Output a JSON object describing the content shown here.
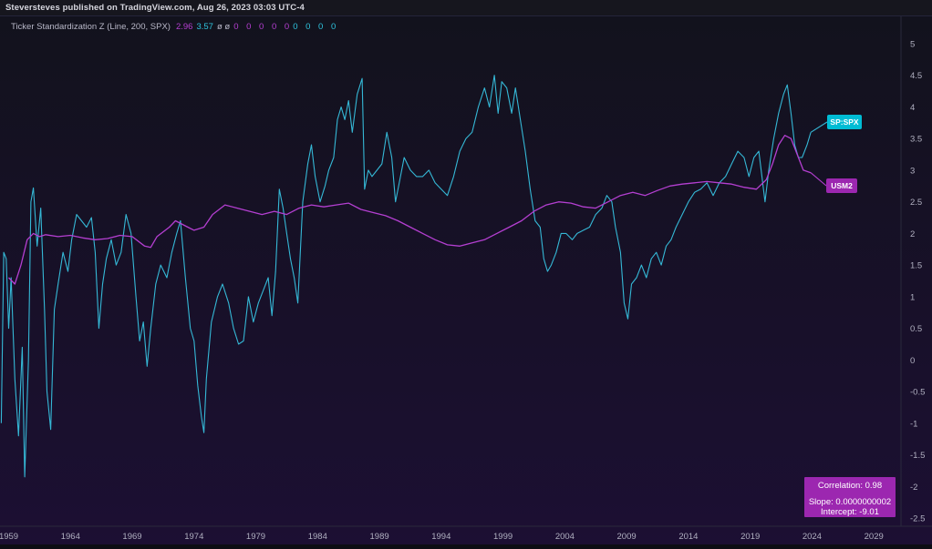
{
  "header": {
    "published_text": "Steversteves published on TradingView.com, Aug 26, 2023 03:03 UTC-4"
  },
  "legend": {
    "indicator_label": "Ticker Standardization Z (Line, 200, SPX)",
    "value_1": "2.96",
    "value_2": "3.57",
    "extra_symbols": "ø ø",
    "zeros_purple": "0 0 0 0 0",
    "zeros_cyan": "0 0 0 0"
  },
  "series_tags": {
    "spx": "SP:SPX",
    "usm2": "USM2"
  },
  "stats_box": {
    "correlation": "Correlation: 0.98",
    "slope": "Slope: 0.0000000002",
    "intercept": "Intercept: -9.01"
  },
  "colors": {
    "background_top": "#12121c",
    "background_bottom": "#1c0f33",
    "spx_line": "#35b8d6",
    "usm2_line": "#b43fd1",
    "tag_spx": "#00bcd4",
    "tag_usm2": "#9c27b0",
    "axis_text": "#b0b0c0"
  },
  "chart_data": {
    "type": "line",
    "title": "",
    "xlabel": "",
    "ylabel": "",
    "xlim": [
      1958.3,
      2031.2
    ],
    "ylim": [
      -2.5,
      5
    ],
    "x_tick_labels": [
      "1959",
      "1964",
      "1969",
      "1974",
      "1979",
      "1984",
      "1989",
      "1994",
      "1999",
      "2004",
      "2009",
      "2014",
      "2019",
      "2024",
      "2029"
    ],
    "y_tick_labels": [
      "5",
      "4.5",
      "4",
      "3.5",
      "3",
      "2.5",
      "2",
      "1.5",
      "1",
      "0.5",
      "0",
      "-0.5",
      "-1",
      "-1.5",
      "-2",
      "-2.5"
    ],
    "grid": false,
    "series": [
      {
        "name": "SP:SPX",
        "color": "#35b8d6",
        "points": [
          [
            1958.4,
            -1.0
          ],
          [
            1958.6,
            1.7
          ],
          [
            1958.8,
            1.6
          ],
          [
            1959.0,
            0.5
          ],
          [
            1959.2,
            1.3
          ],
          [
            1959.5,
            -0.3
          ],
          [
            1959.8,
            -1.2
          ],
          [
            1960.1,
            0.2
          ],
          [
            1960.3,
            -1.85
          ],
          [
            1960.6,
            0.0
          ],
          [
            1960.8,
            2.5
          ],
          [
            1961.0,
            2.72
          ],
          [
            1961.3,
            1.8
          ],
          [
            1961.6,
            2.4
          ],
          [
            1961.9,
            0.8
          ],
          [
            1962.1,
            -0.5
          ],
          [
            1962.4,
            -1.1
          ],
          [
            1962.7,
            0.8
          ],
          [
            1963.0,
            1.2
          ],
          [
            1963.4,
            1.7
          ],
          [
            1963.8,
            1.4
          ],
          [
            1964.1,
            1.9
          ],
          [
            1964.5,
            2.3
          ],
          [
            1964.9,
            2.2
          ],
          [
            1965.3,
            2.1
          ],
          [
            1965.7,
            2.25
          ],
          [
            1966.0,
            1.7
          ],
          [
            1966.3,
            0.5
          ],
          [
            1966.6,
            1.2
          ],
          [
            1966.9,
            1.6
          ],
          [
            1967.3,
            1.9
          ],
          [
            1967.7,
            1.5
          ],
          [
            1968.1,
            1.7
          ],
          [
            1968.5,
            2.3
          ],
          [
            1968.9,
            2.0
          ],
          [
            1969.3,
            1.0
          ],
          [
            1969.6,
            0.3
          ],
          [
            1969.9,
            0.6
          ],
          [
            1970.2,
            -0.1
          ],
          [
            1970.5,
            0.5
          ],
          [
            1970.9,
            1.2
          ],
          [
            1971.3,
            1.5
          ],
          [
            1971.8,
            1.3
          ],
          [
            1972.2,
            1.7
          ],
          [
            1972.6,
            2.0
          ],
          [
            1972.9,
            2.2
          ],
          [
            1973.3,
            1.3
          ],
          [
            1973.7,
            0.5
          ],
          [
            1974.0,
            0.3
          ],
          [
            1974.3,
            -0.4
          ],
          [
            1974.6,
            -0.9
          ],
          [
            1974.8,
            -1.15
          ],
          [
            1975.0,
            -0.3
          ],
          [
            1975.4,
            0.6
          ],
          [
            1975.9,
            1.0
          ],
          [
            1976.3,
            1.2
          ],
          [
            1976.8,
            0.9
          ],
          [
            1977.2,
            0.5
          ],
          [
            1977.6,
            0.25
          ],
          [
            1978.0,
            0.3
          ],
          [
            1978.4,
            1.0
          ],
          [
            1978.8,
            0.6
          ],
          [
            1979.2,
            0.9
          ],
          [
            1979.6,
            1.1
          ],
          [
            1980.0,
            1.3
          ],
          [
            1980.3,
            0.7
          ],
          [
            1980.6,
            1.4
          ],
          [
            1980.9,
            2.7
          ],
          [
            1981.2,
            2.4
          ],
          [
            1981.5,
            2.0
          ],
          [
            1981.8,
            1.6
          ],
          [
            1982.1,
            1.3
          ],
          [
            1982.4,
            0.9
          ],
          [
            1982.8,
            2.5
          ],
          [
            1983.2,
            3.1
          ],
          [
            1983.5,
            3.4
          ],
          [
            1983.8,
            2.9
          ],
          [
            1984.2,
            2.5
          ],
          [
            1984.6,
            2.75
          ],
          [
            1984.9,
            3.0
          ],
          [
            1985.3,
            3.2
          ],
          [
            1985.6,
            3.8
          ],
          [
            1985.9,
            4.0
          ],
          [
            1986.2,
            3.8
          ],
          [
            1986.5,
            4.1
          ],
          [
            1986.8,
            3.6
          ],
          [
            1987.2,
            4.2
          ],
          [
            1987.6,
            4.45
          ],
          [
            1987.8,
            2.7
          ],
          [
            1988.1,
            3.0
          ],
          [
            1988.4,
            2.9
          ],
          [
            1988.8,
            3.0
          ],
          [
            1989.2,
            3.1
          ],
          [
            1989.6,
            3.6
          ],
          [
            1990.0,
            3.2
          ],
          [
            1990.3,
            2.5
          ],
          [
            1990.6,
            2.8
          ],
          [
            1991.0,
            3.2
          ],
          [
            1991.5,
            3.0
          ],
          [
            1992.0,
            2.9
          ],
          [
            1992.5,
            2.9
          ],
          [
            1993.0,
            3.0
          ],
          [
            1993.5,
            2.8
          ],
          [
            1994.0,
            2.7
          ],
          [
            1994.5,
            2.6
          ],
          [
            1995.0,
            2.9
          ],
          [
            1995.5,
            3.3
          ],
          [
            1996.0,
            3.5
          ],
          [
            1996.5,
            3.6
          ],
          [
            1997.0,
            4.0
          ],
          [
            1997.5,
            4.3
          ],
          [
            1997.9,
            4.0
          ],
          [
            1998.3,
            4.5
          ],
          [
            1998.6,
            3.9
          ],
          [
            1998.9,
            4.4
          ],
          [
            1999.3,
            4.3
          ],
          [
            1999.7,
            3.9
          ],
          [
            2000.0,
            4.3
          ],
          [
            2000.4,
            3.8
          ],
          [
            2000.8,
            3.3
          ],
          [
            2001.2,
            2.7
          ],
          [
            2001.6,
            2.2
          ],
          [
            2002.0,
            2.1
          ],
          [
            2002.3,
            1.6
          ],
          [
            2002.6,
            1.4
          ],
          [
            2002.9,
            1.5
          ],
          [
            2003.3,
            1.7
          ],
          [
            2003.7,
            2.0
          ],
          [
            2004.1,
            2.0
          ],
          [
            2004.6,
            1.9
          ],
          [
            2005.0,
            2.0
          ],
          [
            2005.5,
            2.05
          ],
          [
            2006.0,
            2.1
          ],
          [
            2006.5,
            2.3
          ],
          [
            2007.0,
            2.4
          ],
          [
            2007.4,
            2.6
          ],
          [
            2007.8,
            2.5
          ],
          [
            2008.1,
            2.1
          ],
          [
            2008.5,
            1.7
          ],
          [
            2008.8,
            0.9
          ],
          [
            2009.1,
            0.65
          ],
          [
            2009.4,
            1.2
          ],
          [
            2009.8,
            1.3
          ],
          [
            2010.2,
            1.5
          ],
          [
            2010.6,
            1.3
          ],
          [
            2011.0,
            1.6
          ],
          [
            2011.4,
            1.7
          ],
          [
            2011.8,
            1.5
          ],
          [
            2012.2,
            1.8
          ],
          [
            2012.6,
            1.9
          ],
          [
            2013.0,
            2.1
          ],
          [
            2013.5,
            2.3
          ],
          [
            2014.0,
            2.5
          ],
          [
            2014.5,
            2.65
          ],
          [
            2015.0,
            2.7
          ],
          [
            2015.5,
            2.8
          ],
          [
            2016.0,
            2.6
          ],
          [
            2016.5,
            2.8
          ],
          [
            2017.0,
            2.9
          ],
          [
            2017.5,
            3.1
          ],
          [
            2018.0,
            3.3
          ],
          [
            2018.5,
            3.2
          ],
          [
            2018.9,
            2.9
          ],
          [
            2019.3,
            3.2
          ],
          [
            2019.7,
            3.3
          ],
          [
            2020.2,
            2.5
          ],
          [
            2020.5,
            3.0
          ],
          [
            2020.9,
            3.5
          ],
          [
            2021.3,
            3.9
          ],
          [
            2021.7,
            4.2
          ],
          [
            2022.0,
            4.35
          ],
          [
            2022.3,
            3.9
          ],
          [
            2022.6,
            3.4
          ],
          [
            2022.9,
            3.2
          ],
          [
            2023.2,
            3.2
          ],
          [
            2023.6,
            3.4
          ],
          [
            2023.9,
            3.6
          ]
        ]
      },
      {
        "name": "USM2",
        "color": "#b43fd1",
        "points": [
          [
            1959.0,
            1.3
          ],
          [
            1959.5,
            1.2
          ],
          [
            1960.0,
            1.5
          ],
          [
            1960.5,
            1.9
          ],
          [
            1961.0,
            2.0
          ],
          [
            1961.5,
            1.95
          ],
          [
            1962.0,
            1.98
          ],
          [
            1963.0,
            1.95
          ],
          [
            1964.0,
            1.97
          ],
          [
            1965.0,
            1.93
          ],
          [
            1966.0,
            1.9
          ],
          [
            1967.0,
            1.92
          ],
          [
            1968.0,
            1.97
          ],
          [
            1969.0,
            1.95
          ],
          [
            1970.0,
            1.8
          ],
          [
            1970.5,
            1.78
          ],
          [
            1971.0,
            1.95
          ],
          [
            1972.0,
            2.1
          ],
          [
            1972.5,
            2.2
          ],
          [
            1973.5,
            2.1
          ],
          [
            1974.0,
            2.05
          ],
          [
            1974.8,
            2.1
          ],
          [
            1975.5,
            2.3
          ],
          [
            1976.5,
            2.45
          ],
          [
            1977.5,
            2.4
          ],
          [
            1978.5,
            2.35
          ],
          [
            1979.5,
            2.3
          ],
          [
            1980.5,
            2.35
          ],
          [
            1981.5,
            2.3
          ],
          [
            1982.5,
            2.4
          ],
          [
            1983.5,
            2.45
          ],
          [
            1984.5,
            2.42
          ],
          [
            1985.5,
            2.45
          ],
          [
            1986.5,
            2.48
          ],
          [
            1987.5,
            2.38
          ],
          [
            1988.5,
            2.33
          ],
          [
            1989.5,
            2.28
          ],
          [
            1990.5,
            2.2
          ],
          [
            1991.5,
            2.1
          ],
          [
            1992.5,
            2.0
          ],
          [
            1993.5,
            1.9
          ],
          [
            1994.5,
            1.82
          ],
          [
            1995.5,
            1.8
          ],
          [
            1996.5,
            1.85
          ],
          [
            1997.5,
            1.9
          ],
          [
            1998.5,
            2.0
          ],
          [
            1999.5,
            2.1
          ],
          [
            2000.5,
            2.2
          ],
          [
            2001.5,
            2.35
          ],
          [
            2002.5,
            2.45
          ],
          [
            2003.5,
            2.5
          ],
          [
            2004.5,
            2.48
          ],
          [
            2005.5,
            2.42
          ],
          [
            2006.5,
            2.4
          ],
          [
            2007.5,
            2.5
          ],
          [
            2008.5,
            2.6
          ],
          [
            2009.5,
            2.65
          ],
          [
            2010.5,
            2.6
          ],
          [
            2011.5,
            2.68
          ],
          [
            2012.5,
            2.75
          ],
          [
            2013.5,
            2.78
          ],
          [
            2014.5,
            2.8
          ],
          [
            2015.5,
            2.82
          ],
          [
            2016.5,
            2.8
          ],
          [
            2017.5,
            2.78
          ],
          [
            2018.5,
            2.73
          ],
          [
            2019.5,
            2.7
          ],
          [
            2020.3,
            2.85
          ],
          [
            2020.8,
            3.1
          ],
          [
            2021.3,
            3.4
          ],
          [
            2021.8,
            3.55
          ],
          [
            2022.3,
            3.5
          ],
          [
            2022.8,
            3.25
          ],
          [
            2023.3,
            3.0
          ],
          [
            2023.9,
            2.96
          ]
        ]
      }
    ]
  }
}
